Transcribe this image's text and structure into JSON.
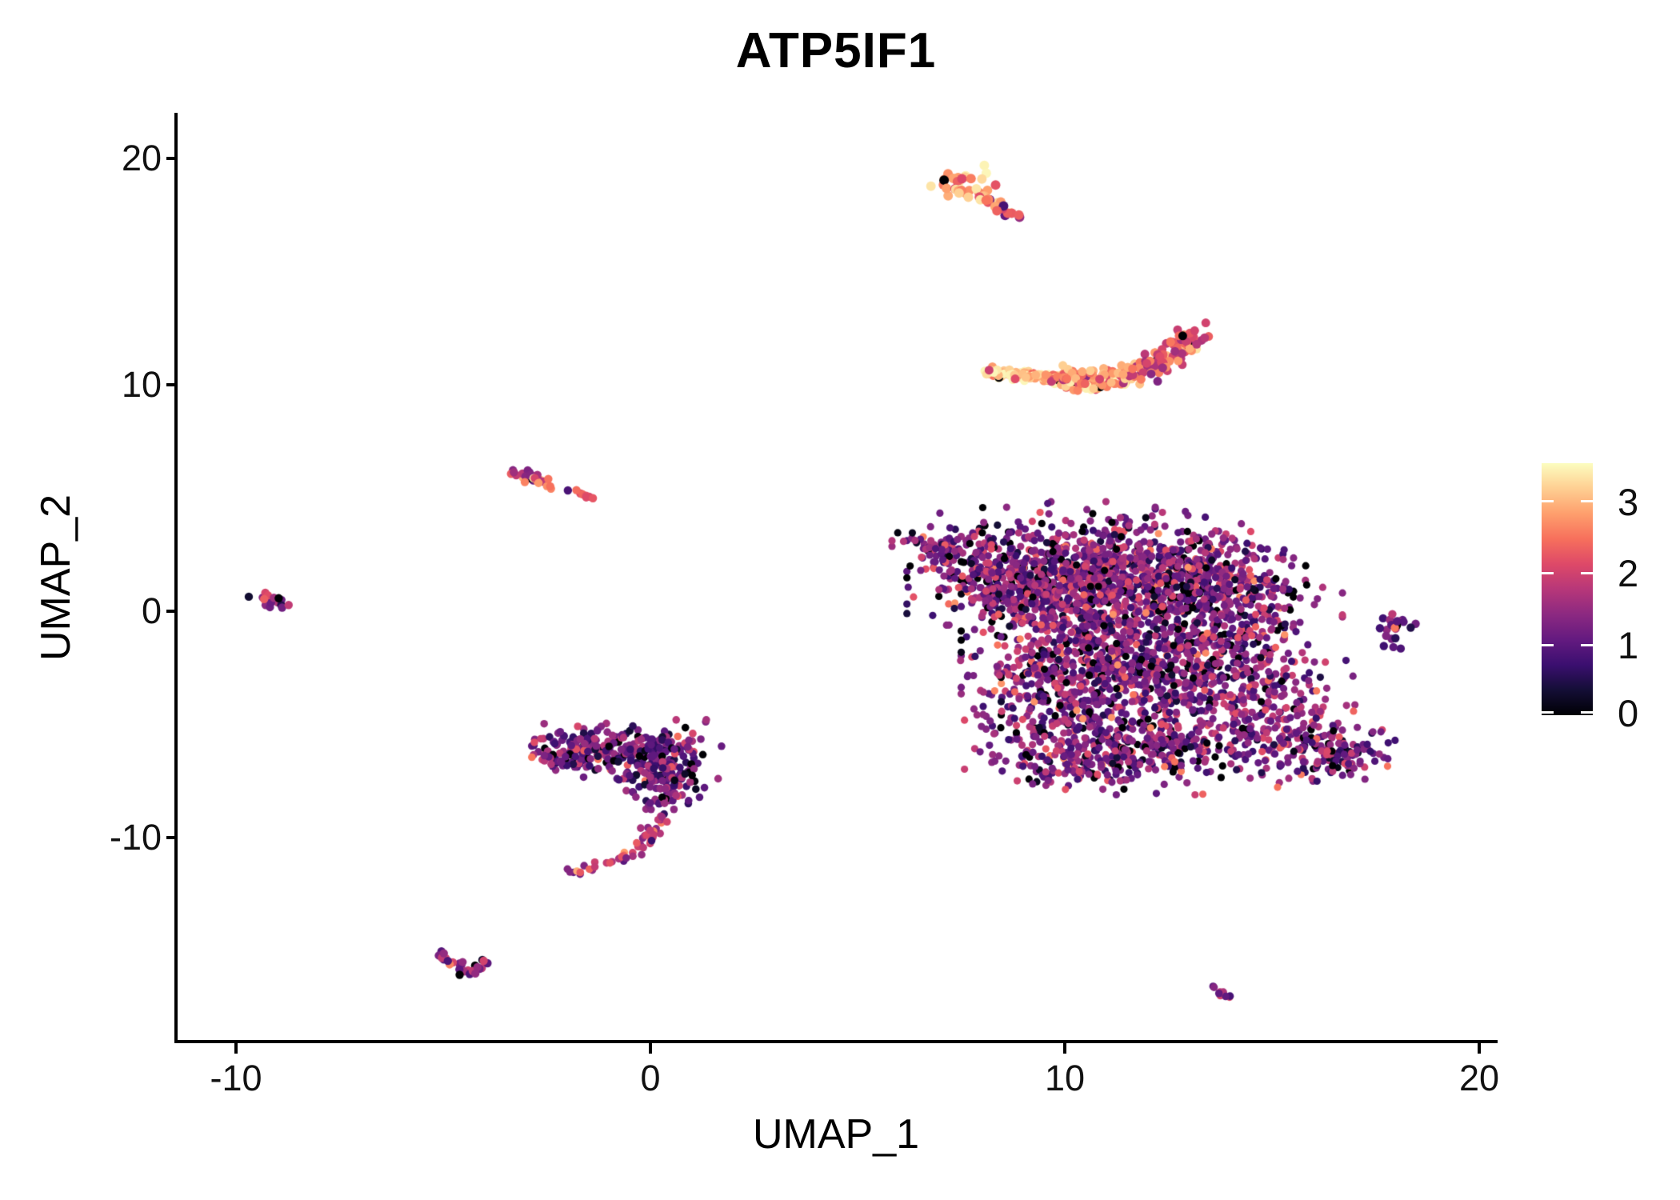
{
  "title": "ATP5IF1",
  "axes": {
    "x_label": "UMAP_1",
    "y_label": "UMAP_2",
    "x_ticks": [
      "-10",
      "0",
      "10",
      "20"
    ],
    "y_ticks": [
      "20",
      "10",
      "0",
      "-10"
    ]
  },
  "legend": {
    "tick_labels": [
      "3",
      "2",
      "1",
      "0"
    ]
  },
  "chart_data": {
    "type": "scatter",
    "title": "ATP5IF1",
    "xlabel": "UMAP_1",
    "ylabel": "UMAP_2",
    "xlim": [
      -11.5,
      20.5
    ],
    "ylim": [
      -19,
      22
    ],
    "x_ticks": [
      -10,
      0,
      10,
      20
    ],
    "y_ticks": [
      20,
      10,
      0,
      -10
    ],
    "grid": false,
    "legend_position": "right",
    "colormap": "magma",
    "color_value_min": 0,
    "color_value_max": 3.5,
    "legend_ticks": [
      3,
      2,
      1,
      0
    ],
    "colormap_stops": [
      {
        "t": 0.0,
        "color": "#000004"
      },
      {
        "t": 0.1,
        "color": "#140e36"
      },
      {
        "t": 0.2,
        "color": "#3b0f70"
      },
      {
        "t": 0.3,
        "color": "#641a80"
      },
      {
        "t": 0.4,
        "color": "#8c2981"
      },
      {
        "t": 0.5,
        "color": "#b73779"
      },
      {
        "t": 0.6,
        "color": "#de4968"
      },
      {
        "t": 0.7,
        "color": "#f7705c"
      },
      {
        "t": 0.8,
        "color": "#fe9f6d"
      },
      {
        "t": 0.9,
        "color": "#fecf92"
      },
      {
        "t": 1.0,
        "color": "#fcfdbf"
      }
    ],
    "seed": 7,
    "clusters": [
      {
        "name": "top-spindle-high-expression",
        "marker_radius": 6,
        "value": {
          "mean": 2.9,
          "sd": 0.55,
          "min": 0.3,
          "max": 3.45,
          "zero_frac": 0.02
        },
        "blobs": [
          {
            "x": 7.55,
            "y": 18.85,
            "sdx": 0.3,
            "sdy": 0.33,
            "n": 34
          }
        ],
        "paths": [
          {
            "points": [
              [
                7.95,
                18.35
              ],
              [
                8.35,
                17.9
              ],
              [
                8.75,
                17.35
              ]
            ],
            "n": 20,
            "jitter": 0.09,
            "value": {
              "mean": 2.5,
              "sd": 0.65,
              "min": 0.4,
              "max": 3.4,
              "zero_frac": 0.05
            }
          }
        ]
      },
      {
        "name": "banana-crescent-high-expression",
        "marker_radius": 5.5,
        "value": {
          "mean": 2.7,
          "sd": 0.5,
          "min": 0.2,
          "max": 3.4,
          "zero_frac": 0.02
        },
        "blobs": [],
        "paths": [
          {
            "points": [
              [
                8.05,
                10.55
              ],
              [
                9.0,
                10.42
              ],
              [
                10.0,
                10.3
              ]
            ],
            "n": 110,
            "jitter": 0.11,
            "value": {
              "mean": 2.95,
              "sd": 0.45,
              "min": 0.2,
              "max": 3.45,
              "zero_frac": 0.01
            }
          },
          {
            "points": [
              [
                10.0,
                10.3
              ],
              [
                10.9,
                10.22
              ],
              [
                11.6,
                10.45
              ]
            ],
            "n": 120,
            "jitter": 0.22,
            "value": {
              "mean": 2.7,
              "sd": 0.5,
              "min": 0.2,
              "max": 3.4,
              "zero_frac": 0.02
            }
          },
          {
            "points": [
              [
                11.6,
                10.45
              ],
              [
                12.3,
                10.95
              ],
              [
                12.85,
                11.65
              ],
              [
                13.05,
                12.45
              ]
            ],
            "n": 110,
            "jitter": 0.2,
            "value": {
              "mean": 2.3,
              "sd": 0.5,
              "min": 0.3,
              "max": 3.3,
              "zero_frac": 0.01
            }
          }
        ]
      },
      {
        "name": "main-body-low-mid-expression",
        "marker_radius": 4.6,
        "value": {
          "mean": 1.28,
          "sd": 0.55,
          "min": 0,
          "max": 3.2,
          "zero_frac": 0.07
        },
        "blobs": [
          {
            "x": 7.0,
            "y": 2.9,
            "sdx": 0.45,
            "sdy": 0.4,
            "n": 55
          },
          {
            "x": 8.4,
            "y": 1.6,
            "sdx": 0.85,
            "sdy": 1.05,
            "n": 330
          },
          {
            "x": 10.4,
            "y": 1.3,
            "sdx": 1.15,
            "sdy": 1.4,
            "n": 520
          },
          {
            "x": 12.4,
            "y": 1.6,
            "sdx": 1.2,
            "sdy": 1.15,
            "n": 520
          },
          {
            "x": 14.1,
            "y": 0.4,
            "sdx": 1.0,
            "sdy": 1.2,
            "n": 290
          },
          {
            "x": 11.4,
            "y": -2.2,
            "sdx": 1.5,
            "sdy": 1.4,
            "n": 480
          },
          {
            "x": 9.6,
            "y": -3.3,
            "sdx": 0.95,
            "sdy": 1.3,
            "n": 230
          },
          {
            "x": 13.6,
            "y": -3.1,
            "sdx": 1.35,
            "sdy": 1.25,
            "n": 330
          },
          {
            "x": 12.0,
            "y": -5.9,
            "sdx": 1.7,
            "sdy": 0.85,
            "n": 330
          },
          {
            "x": 10.4,
            "y": -6.9,
            "sdx": 0.9,
            "sdy": 0.5,
            "n": 110
          },
          {
            "x": 15.5,
            "y": -5.2,
            "sdx": 0.95,
            "sdy": 0.85,
            "n": 140
          },
          {
            "x": 16.5,
            "y": -6.5,
            "sdx": 0.55,
            "sdy": 0.45,
            "n": 90
          }
        ],
        "paths": []
      },
      {
        "name": "left-mid-spindle",
        "marker_radius": 5.2,
        "value": {
          "mean": 1.9,
          "sd": 0.75,
          "min": 0.2,
          "max": 3.3,
          "zero_frac": 0.04
        },
        "blobs": [
          {
            "x": -1.95,
            "y": 5.35,
            "sdx": 0.03,
            "sdy": 0.03,
            "n": 1,
            "value": {
              "mean": 0.9,
              "sd": 0.1,
              "min": 0.8,
              "max": 1.0,
              "zero_frac": 0
            }
          }
        ],
        "paths": [
          {
            "points": [
              [
                -3.35,
                6.1
              ],
              [
                -2.9,
                5.95
              ],
              [
                -2.45,
                5.6
              ]
            ],
            "n": 34,
            "jitter": 0.11
          },
          {
            "points": [
              [
                -1.75,
                5.3
              ],
              [
                -1.45,
                4.95
              ]
            ],
            "n": 7,
            "jitter": 0.05,
            "value": {
              "mean": 2.25,
              "sd": 0.25,
              "min": 1.6,
              "max": 2.6,
              "zero_frac": 0
            }
          }
        ]
      },
      {
        "name": "far-left-dot",
        "marker_radius": 5.2,
        "value": {
          "mean": 1.7,
          "sd": 0.65,
          "min": 0,
          "max": 2.9,
          "zero_frac": 0.06
        },
        "blobs": [
          {
            "x": -9.15,
            "y": 0.45,
            "sdx": 0.24,
            "sdy": 0.17,
            "n": 17
          }
        ],
        "paths": []
      },
      {
        "name": "comma-hook-cluster",
        "marker_radius": 4.8,
        "value": {
          "mean": 1.18,
          "sd": 0.5,
          "min": 0,
          "max": 2.9,
          "zero_frac": 0.06
        },
        "blobs": [
          {
            "x": -1.6,
            "y": -6.1,
            "sdx": 0.75,
            "sdy": 0.5,
            "n": 170
          },
          {
            "x": 0.1,
            "y": -6.1,
            "sdx": 0.65,
            "sdy": 0.5,
            "n": 130
          },
          {
            "x": 0.3,
            "y": -7.2,
            "sdx": 0.5,
            "sdy": 0.5,
            "n": 80
          },
          {
            "x": 0.35,
            "y": -8.2,
            "sdx": 0.3,
            "sdy": 0.5,
            "n": 40
          }
        ],
        "paths": [
          {
            "points": [
              [
                0.3,
                -8.9
              ],
              [
                0.1,
                -9.8
              ],
              [
                -0.45,
                -10.7
              ],
              [
                -1.2,
                -11.3
              ],
              [
                -1.8,
                -11.45
              ]
            ],
            "n": 50,
            "jitter": 0.13,
            "value": {
              "mean": 1.9,
              "sd": 0.55,
              "min": 0.3,
              "max": 2.9,
              "zero_frac": 0.02
            }
          }
        ]
      },
      {
        "name": "bottom-left-chevron",
        "marker_radius": 5.2,
        "value": {
          "mean": 1.5,
          "sd": 0.55,
          "min": 0.3,
          "max": 2.6,
          "zero_frac": 0.05
        },
        "blobs": [],
        "paths": [
          {
            "points": [
              [
                -5.3,
                -15.1
              ],
              [
                -4.75,
                -15.55
              ],
              [
                -4.45,
                -15.9
              ]
            ],
            "n": 16,
            "jitter": 0.1
          },
          {
            "points": [
              [
                -4.45,
                -15.9
              ],
              [
                -4.15,
                -15.6
              ],
              [
                -3.95,
                -15.3
              ]
            ],
            "n": 12,
            "jitter": 0.1,
            "value": {
              "mean": 1.4,
              "sd": 0.5,
              "min": 0.3,
              "max": 2.4,
              "zero_frac": 0.05
            }
          }
        ]
      },
      {
        "name": "right-small-cluster",
        "marker_radius": 5.2,
        "value": {
          "mean": 1.5,
          "sd": 0.7,
          "min": 0,
          "max": 3.0,
          "zero_frac": 0.07
        },
        "blobs": [
          {
            "x": 18.0,
            "y": -0.6,
            "sdx": 0.3,
            "sdy": 0.2,
            "n": 15
          },
          {
            "x": 17.85,
            "y": -1.4,
            "sdx": 0.1,
            "sdy": 0.3,
            "n": 6,
            "value": {
              "mean": 1.0,
              "sd": 0.3,
              "min": 0.4,
              "max": 1.6,
              "zero_frac": 0
            }
          }
        ],
        "paths": []
      },
      {
        "name": "bottom-right-dash",
        "marker_radius": 4.8,
        "value": {
          "mean": 1.6,
          "sd": 0.45,
          "min": 0.8,
          "max": 2.3,
          "zero_frac": 0
        },
        "blobs": [],
        "paths": [
          {
            "points": [
              [
                13.55,
                -16.55
              ],
              [
                14.0,
                -17.1
              ]
            ],
            "n": 10,
            "jitter": 0.07
          }
        ]
      }
    ]
  }
}
